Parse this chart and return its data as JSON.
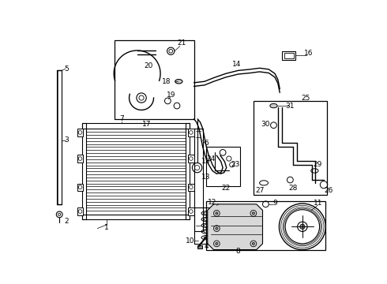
{
  "background_color": "#ffffff",
  "fig_width": 4.9,
  "fig_height": 3.6,
  "dpi": 100,
  "xlim": [
    0,
    490
  ],
  "ylim": [
    0,
    360
  ]
}
